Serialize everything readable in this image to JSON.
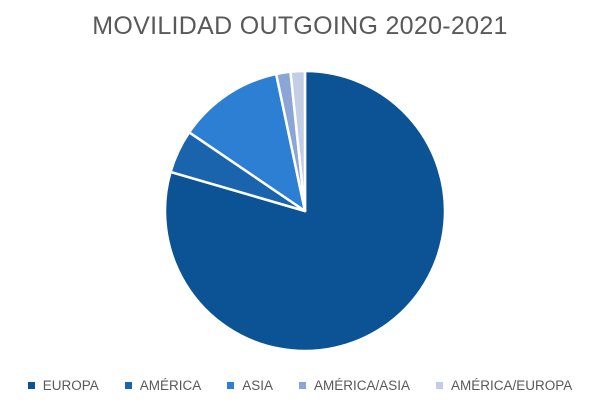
{
  "chart_data": {
    "type": "pie",
    "title": "MOVILIDAD OUTGOING 2020-2021",
    "categories": [
      "EUROPA",
      "AMÉRICA",
      "ASIA",
      "AMÉRICA/ASIA",
      "AMÉRICA/EUROPA"
    ],
    "values": [
      79.5,
      5,
      12.2,
      1.65,
      1.65
    ],
    "colors": [
      "#0b5394",
      "#1a63ad",
      "#2d7fd3",
      "#8aa5d6",
      "#c2cde6"
    ],
    "legend_position": "bottom",
    "start_angle_deg": 0,
    "direction": "clockwise"
  }
}
